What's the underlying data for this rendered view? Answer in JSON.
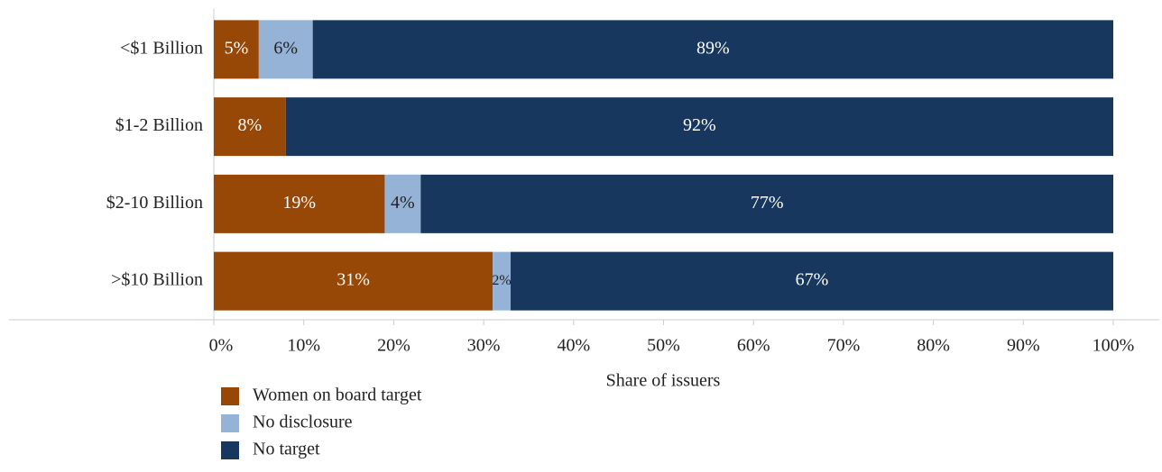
{
  "chart_data": {
    "type": "stacked-barh",
    "xlabel": "Share of issuers",
    "categories": [
      "<$1 Billion",
      "$1-2 Billion",
      "$2-10 Billion",
      ">$10 Billion"
    ],
    "series": [
      {
        "name": "Women on board target",
        "color": "#974706",
        "label_color": "#ffffff",
        "values": [
          5,
          8,
          19,
          31
        ]
      },
      {
        "name": "No disclosure",
        "color": "#95b3d7",
        "label_color": "#222222",
        "values": [
          6,
          null,
          4,
          2
        ]
      },
      {
        "name": "No target",
        "color": "#17375e",
        "label_color": "#ffffff",
        "values": [
          89,
          92,
          77,
          67
        ]
      }
    ],
    "value_suffix_labels": true,
    "xlim": [
      0,
      100
    ],
    "xticks": [
      {
        "value": 0,
        "label": "0%"
      },
      {
        "value": 10,
        "label": "10%"
      },
      {
        "value": 20,
        "label": "20%"
      },
      {
        "value": 30,
        "label": "30%"
      },
      {
        "value": 40,
        "label": "40%"
      },
      {
        "value": 50,
        "label": "50%"
      },
      {
        "value": 60,
        "label": "60%"
      },
      {
        "value": 70,
        "label": "70%"
      },
      {
        "value": 80,
        "label": "80%"
      },
      {
        "value": 90,
        "label": "90%"
      },
      {
        "value": 100,
        "label": "100%"
      }
    ],
    "value_labels": [
      [
        "5%",
        "8%",
        "19%",
        "31%"
      ],
      [
        "6%",
        null,
        "4%",
        "2%"
      ],
      [
        "89%",
        "92%",
        "77%",
        "67%"
      ]
    ],
    "legend": "bottom-left"
  }
}
